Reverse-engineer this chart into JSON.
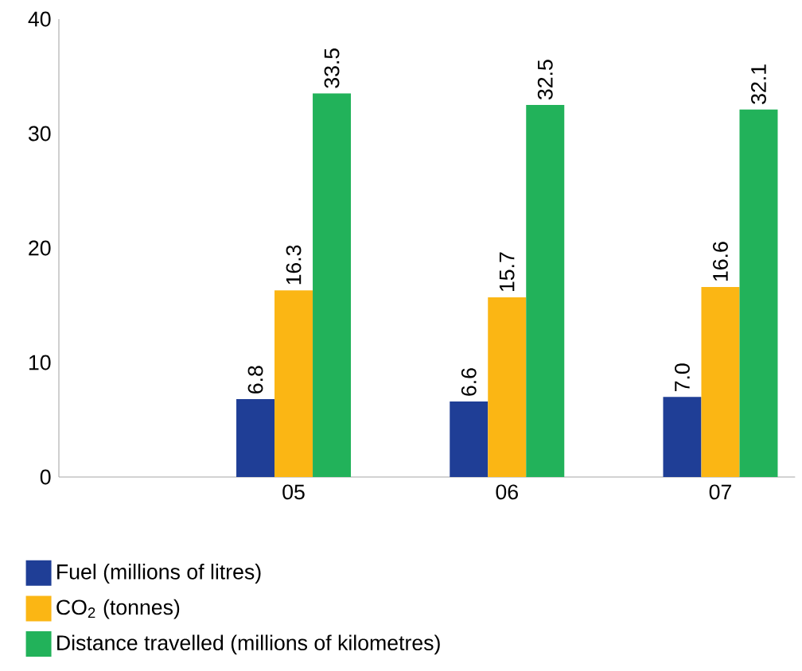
{
  "chart_data": {
    "type": "bar",
    "categories": [
      "05",
      "06",
      "07"
    ],
    "series": [
      {
        "name": "Fuel (millions of litres)",
        "color": "#1f3e96",
        "values": [
          6.8,
          6.6,
          7.0
        ],
        "value_labels": [
          "6.8",
          "6.6",
          "7.0"
        ]
      },
      {
        "name": "CO$_{2}$ (tonnes)",
        "color": "#fbb614",
        "values": [
          16.3,
          15.7,
          16.6
        ],
        "value_labels": [
          "16.3",
          "15.7",
          "16.6"
        ]
      },
      {
        "name": "Distance travelled (millions of kilometres)",
        "color": "#22b25a",
        "values": [
          33.5,
          32.5,
          32.1
        ],
        "value_labels": [
          "33.5",
          "32.5",
          "32.1"
        ]
      }
    ],
    "ylim": [
      0,
      40
    ],
    "yticks": [
      0,
      10,
      20,
      30,
      40
    ],
    "grid": false,
    "legend": "bottom"
  }
}
